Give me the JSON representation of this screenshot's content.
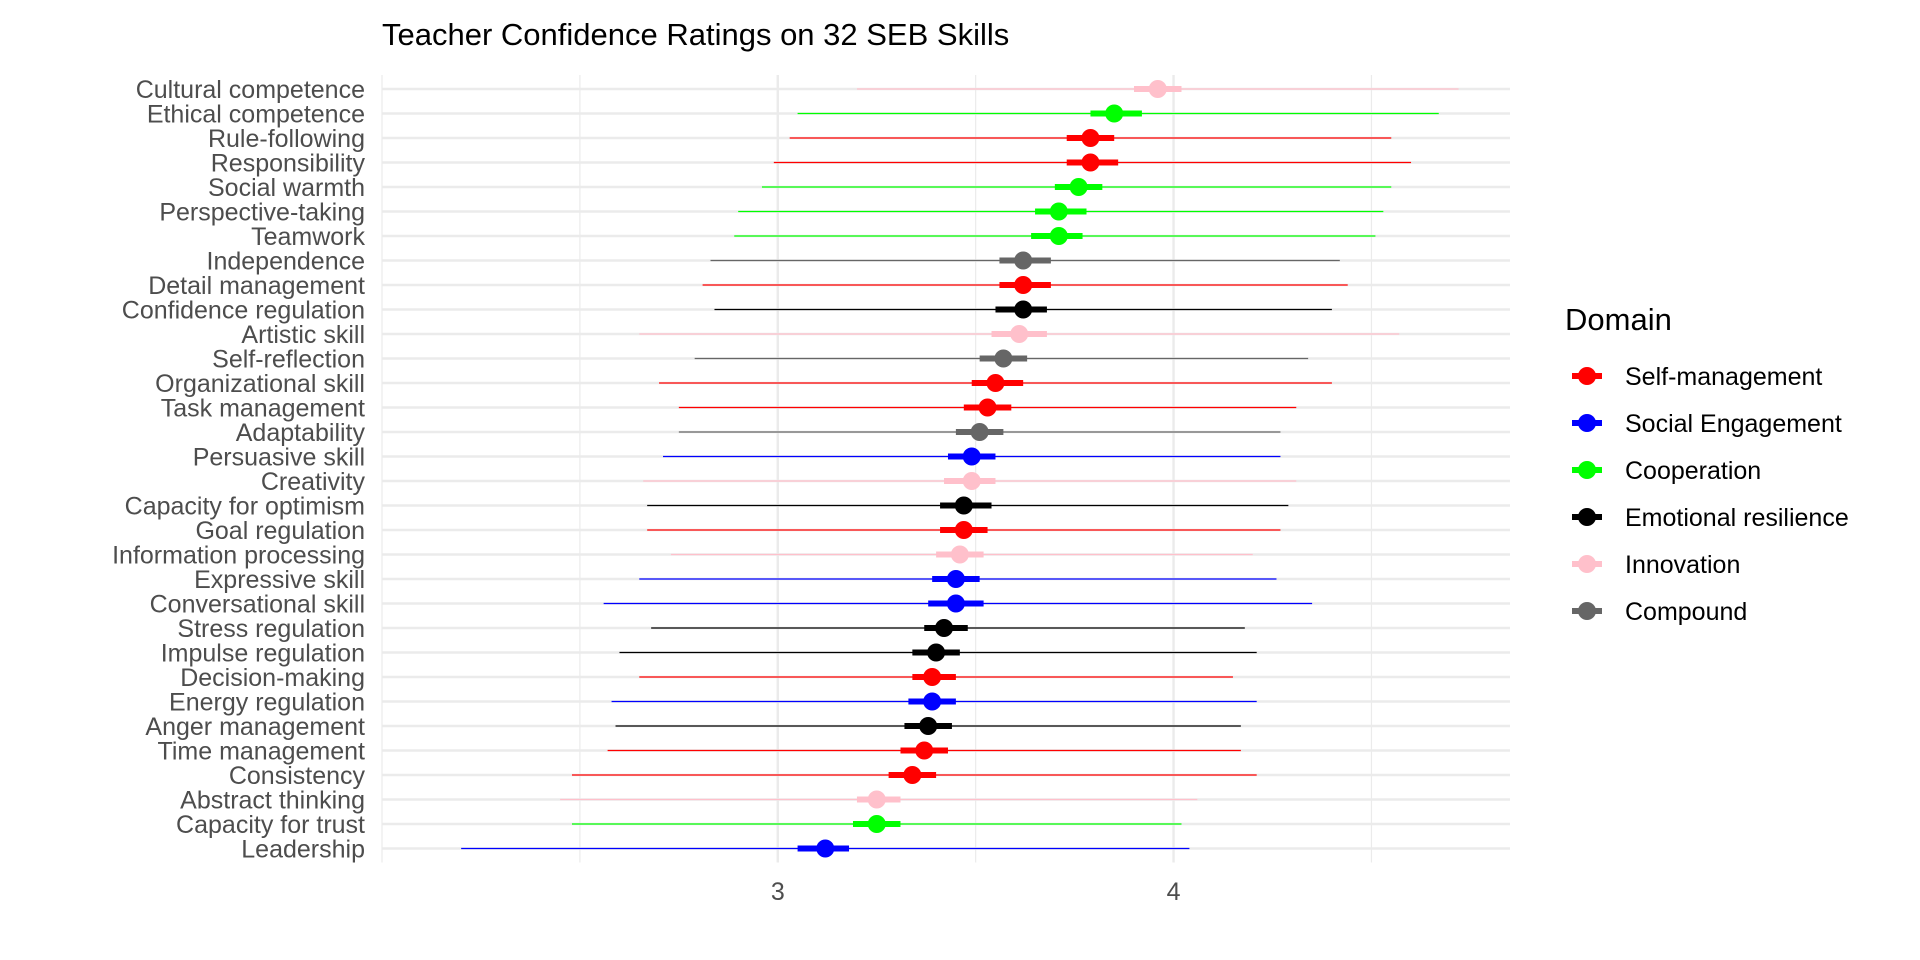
{
  "chart_data": {
    "type": "forest",
    "title": "Teacher Confidence Ratings on 32 SEB Skills",
    "xlabel": "",
    "ylabel": "",
    "xlim": [
      2.0,
      4.85
    ],
    "x_ticks": [
      3,
      4
    ],
    "grid": true,
    "legend": {
      "title": "Domain",
      "placement": "right",
      "items": [
        {
          "name": "Self-management",
          "color": "#FF0000"
        },
        {
          "name": "Social Engagement",
          "color": "#0000FF"
        },
        {
          "name": "Cooperation",
          "color": "#00FF00"
        },
        {
          "name": "Emotional resilience",
          "color": "#000000"
        },
        {
          "name": "Innovation",
          "color": "#FFC0CB"
        },
        {
          "name": "Compound",
          "color": "#666666"
        }
      ]
    },
    "points": [
      {
        "label": "Cultural competence",
        "domain": "Innovation",
        "estimate": 3.96,
        "ci_inner": [
          3.9,
          4.02
        ],
        "ci_outer": [
          3.2,
          4.72
        ]
      },
      {
        "label": "Ethical competence",
        "domain": "Cooperation",
        "estimate": 3.85,
        "ci_inner": [
          3.79,
          3.92
        ],
        "ci_outer": [
          3.05,
          4.67
        ]
      },
      {
        "label": "Rule-following",
        "domain": "Self-management",
        "estimate": 3.79,
        "ci_inner": [
          3.73,
          3.85
        ],
        "ci_outer": [
          3.03,
          4.55
        ]
      },
      {
        "label": "Responsibility",
        "domain": "Self-management",
        "estimate": 3.79,
        "ci_inner": [
          3.73,
          3.86
        ],
        "ci_outer": [
          2.99,
          4.6
        ]
      },
      {
        "label": "Social warmth",
        "domain": "Cooperation",
        "estimate": 3.76,
        "ci_inner": [
          3.7,
          3.82
        ],
        "ci_outer": [
          2.96,
          4.55
        ]
      },
      {
        "label": "Perspective-taking",
        "domain": "Cooperation",
        "estimate": 3.71,
        "ci_inner": [
          3.65,
          3.78
        ],
        "ci_outer": [
          2.9,
          4.53
        ]
      },
      {
        "label": "Teamwork",
        "domain": "Cooperation",
        "estimate": 3.71,
        "ci_inner": [
          3.64,
          3.77
        ],
        "ci_outer": [
          2.89,
          4.51
        ]
      },
      {
        "label": "Independence",
        "domain": "Compound",
        "estimate": 3.62,
        "ci_inner": [
          3.56,
          3.69
        ],
        "ci_outer": [
          2.83,
          4.42
        ]
      },
      {
        "label": "Detail management",
        "domain": "Self-management",
        "estimate": 3.62,
        "ci_inner": [
          3.56,
          3.69
        ],
        "ci_outer": [
          2.81,
          4.44
        ]
      },
      {
        "label": "Confidence regulation",
        "domain": "Emotional resilience",
        "estimate": 3.62,
        "ci_inner": [
          3.55,
          3.68
        ],
        "ci_outer": [
          2.84,
          4.4
        ]
      },
      {
        "label": "Artistic skill",
        "domain": "Innovation",
        "estimate": 3.61,
        "ci_inner": [
          3.54,
          3.68
        ],
        "ci_outer": [
          2.65,
          4.57
        ]
      },
      {
        "label": "Self-reflection",
        "domain": "Compound",
        "estimate": 3.57,
        "ci_inner": [
          3.51,
          3.63
        ],
        "ci_outer": [
          2.79,
          4.34
        ]
      },
      {
        "label": "Organizational skill",
        "domain": "Self-management",
        "estimate": 3.55,
        "ci_inner": [
          3.49,
          3.62
        ],
        "ci_outer": [
          2.7,
          4.4
        ]
      },
      {
        "label": "Task management",
        "domain": "Self-management",
        "estimate": 3.53,
        "ci_inner": [
          3.47,
          3.59
        ],
        "ci_outer": [
          2.75,
          4.31
        ]
      },
      {
        "label": "Adaptability",
        "domain": "Compound",
        "estimate": 3.51,
        "ci_inner": [
          3.45,
          3.57
        ],
        "ci_outer": [
          2.75,
          4.27
        ]
      },
      {
        "label": "Persuasive skill",
        "domain": "Social Engagement",
        "estimate": 3.49,
        "ci_inner": [
          3.43,
          3.55
        ],
        "ci_outer": [
          2.71,
          4.27
        ]
      },
      {
        "label": "Creativity",
        "domain": "Innovation",
        "estimate": 3.49,
        "ci_inner": [
          3.42,
          3.55
        ],
        "ci_outer": [
          2.66,
          4.31
        ]
      },
      {
        "label": "Capacity for optimism",
        "domain": "Emotional resilience",
        "estimate": 3.47,
        "ci_inner": [
          3.41,
          3.54
        ],
        "ci_outer": [
          2.67,
          4.29
        ]
      },
      {
        "label": "Goal regulation",
        "domain": "Self-management",
        "estimate": 3.47,
        "ci_inner": [
          3.41,
          3.53
        ],
        "ci_outer": [
          2.67,
          4.27
        ]
      },
      {
        "label": "Information processing",
        "domain": "Innovation",
        "estimate": 3.46,
        "ci_inner": [
          3.4,
          3.52
        ],
        "ci_outer": [
          2.73,
          4.2
        ]
      },
      {
        "label": "Expressive skill",
        "domain": "Social Engagement",
        "estimate": 3.45,
        "ci_inner": [
          3.39,
          3.51
        ],
        "ci_outer": [
          2.65,
          4.26
        ]
      },
      {
        "label": "Conversational skill",
        "domain": "Social Engagement",
        "estimate": 3.45,
        "ci_inner": [
          3.38,
          3.52
        ],
        "ci_outer": [
          2.56,
          4.35
        ]
      },
      {
        "label": "Stress regulation",
        "domain": "Emotional resilience",
        "estimate": 3.42,
        "ci_inner": [
          3.37,
          3.48
        ],
        "ci_outer": [
          2.68,
          4.18
        ]
      },
      {
        "label": "Impulse regulation",
        "domain": "Emotional resilience",
        "estimate": 3.4,
        "ci_inner": [
          3.34,
          3.46
        ],
        "ci_outer": [
          2.6,
          4.21
        ]
      },
      {
        "label": "Decision-making",
        "domain": "Self-management",
        "estimate": 3.39,
        "ci_inner": [
          3.34,
          3.45
        ],
        "ci_outer": [
          2.65,
          4.15
        ]
      },
      {
        "label": "Energy regulation",
        "domain": "Social Engagement",
        "estimate": 3.39,
        "ci_inner": [
          3.33,
          3.45
        ],
        "ci_outer": [
          2.58,
          4.21
        ]
      },
      {
        "label": "Anger management",
        "domain": "Emotional resilience",
        "estimate": 3.38,
        "ci_inner": [
          3.32,
          3.44
        ],
        "ci_outer": [
          2.59,
          4.17
        ]
      },
      {
        "label": "Time management",
        "domain": "Self-management",
        "estimate": 3.37,
        "ci_inner": [
          3.31,
          3.43
        ],
        "ci_outer": [
          2.57,
          4.17
        ]
      },
      {
        "label": "Consistency",
        "domain": "Self-management",
        "estimate": 3.34,
        "ci_inner": [
          3.28,
          3.4
        ],
        "ci_outer": [
          2.48,
          4.21
        ]
      },
      {
        "label": "Abstract thinking",
        "domain": "Innovation",
        "estimate": 3.25,
        "ci_inner": [
          3.2,
          3.31
        ],
        "ci_outer": [
          2.45,
          4.06
        ]
      },
      {
        "label": "Capacity for trust",
        "domain": "Cooperation",
        "estimate": 3.25,
        "ci_inner": [
          3.19,
          3.31
        ],
        "ci_outer": [
          2.48,
          4.02
        ]
      },
      {
        "label": "Leadership",
        "domain": "Social Engagement",
        "estimate": 3.12,
        "ci_inner": [
          3.05,
          3.18
        ],
        "ci_outer": [
          2.2,
          4.04
        ]
      }
    ]
  }
}
